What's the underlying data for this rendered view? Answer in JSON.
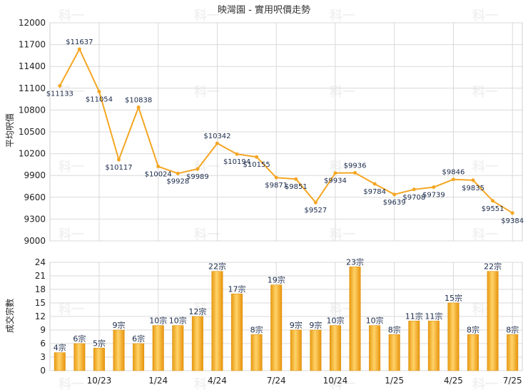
{
  "chart_data": [
    {
      "type": "line",
      "title": "映灣園 - 實用呎價走勢",
      "ylabel": "平均呎價",
      "ylim": [
        9000,
        12000
      ],
      "yticks": [
        9000,
        9300,
        9600,
        9900,
        10200,
        10500,
        10800,
        11100,
        11400,
        11700,
        12000
      ],
      "grid": true,
      "color": "#f5a623",
      "values": [
        11133,
        11637,
        11054,
        10117,
        10838,
        10024,
        9928,
        9989,
        10342,
        10194,
        10155,
        9871,
        9851,
        9527,
        9934,
        9936,
        9784,
        9639,
        9708,
        9739,
        9846,
        9835,
        9551,
        9384
      ],
      "labels": [
        "$11133",
        "$11637",
        "$11054",
        "$10117",
        "$10838",
        "$10024",
        "$9928",
        "$9989",
        "$10342",
        "$10194",
        "$10155",
        "$9871",
        "$9851",
        "$9527",
        "$9934",
        "$9936",
        "$9784",
        "$9639",
        "$9708",
        "$9739",
        "$9846",
        "$9835",
        "$9551",
        "$9384"
      ]
    },
    {
      "type": "bar",
      "ylabel": "成交宗數",
      "ylim": [
        0,
        24
      ],
      "yticks": [
        0,
        3,
        6,
        9,
        12,
        15,
        18,
        21,
        24
      ],
      "grid": true,
      "color": "#f5a623",
      "values": [
        4,
        6,
        5,
        9,
        6,
        10,
        10,
        12,
        22,
        17,
        8,
        19,
        9,
        9,
        10,
        23,
        10,
        8,
        11,
        11,
        15,
        8,
        22,
        8
      ],
      "labels": [
        "4宗",
        "6宗",
        "5宗",
        "9宗",
        "6宗",
        "10宗",
        "10宗",
        "12宗",
        "22宗",
        "17宗",
        "8宗",
        "19宗",
        "9宗",
        "9宗",
        "10宗",
        "23宗",
        "10宗",
        "8宗",
        "11宗",
        "11宗",
        "15宗",
        "8宗",
        "22宗",
        "8宗"
      ]
    }
  ],
  "x_axis": {
    "tick_labels": [
      "10/23",
      "1/24",
      "4/24",
      "7/24",
      "10/24",
      "1/25",
      "4/25",
      "7/25"
    ],
    "tick_positions": [
      2.5,
      5.5,
      8.5,
      11.5,
      14.5,
      17.5,
      20.5,
      23.5
    ]
  },
  "watermark": "科一"
}
